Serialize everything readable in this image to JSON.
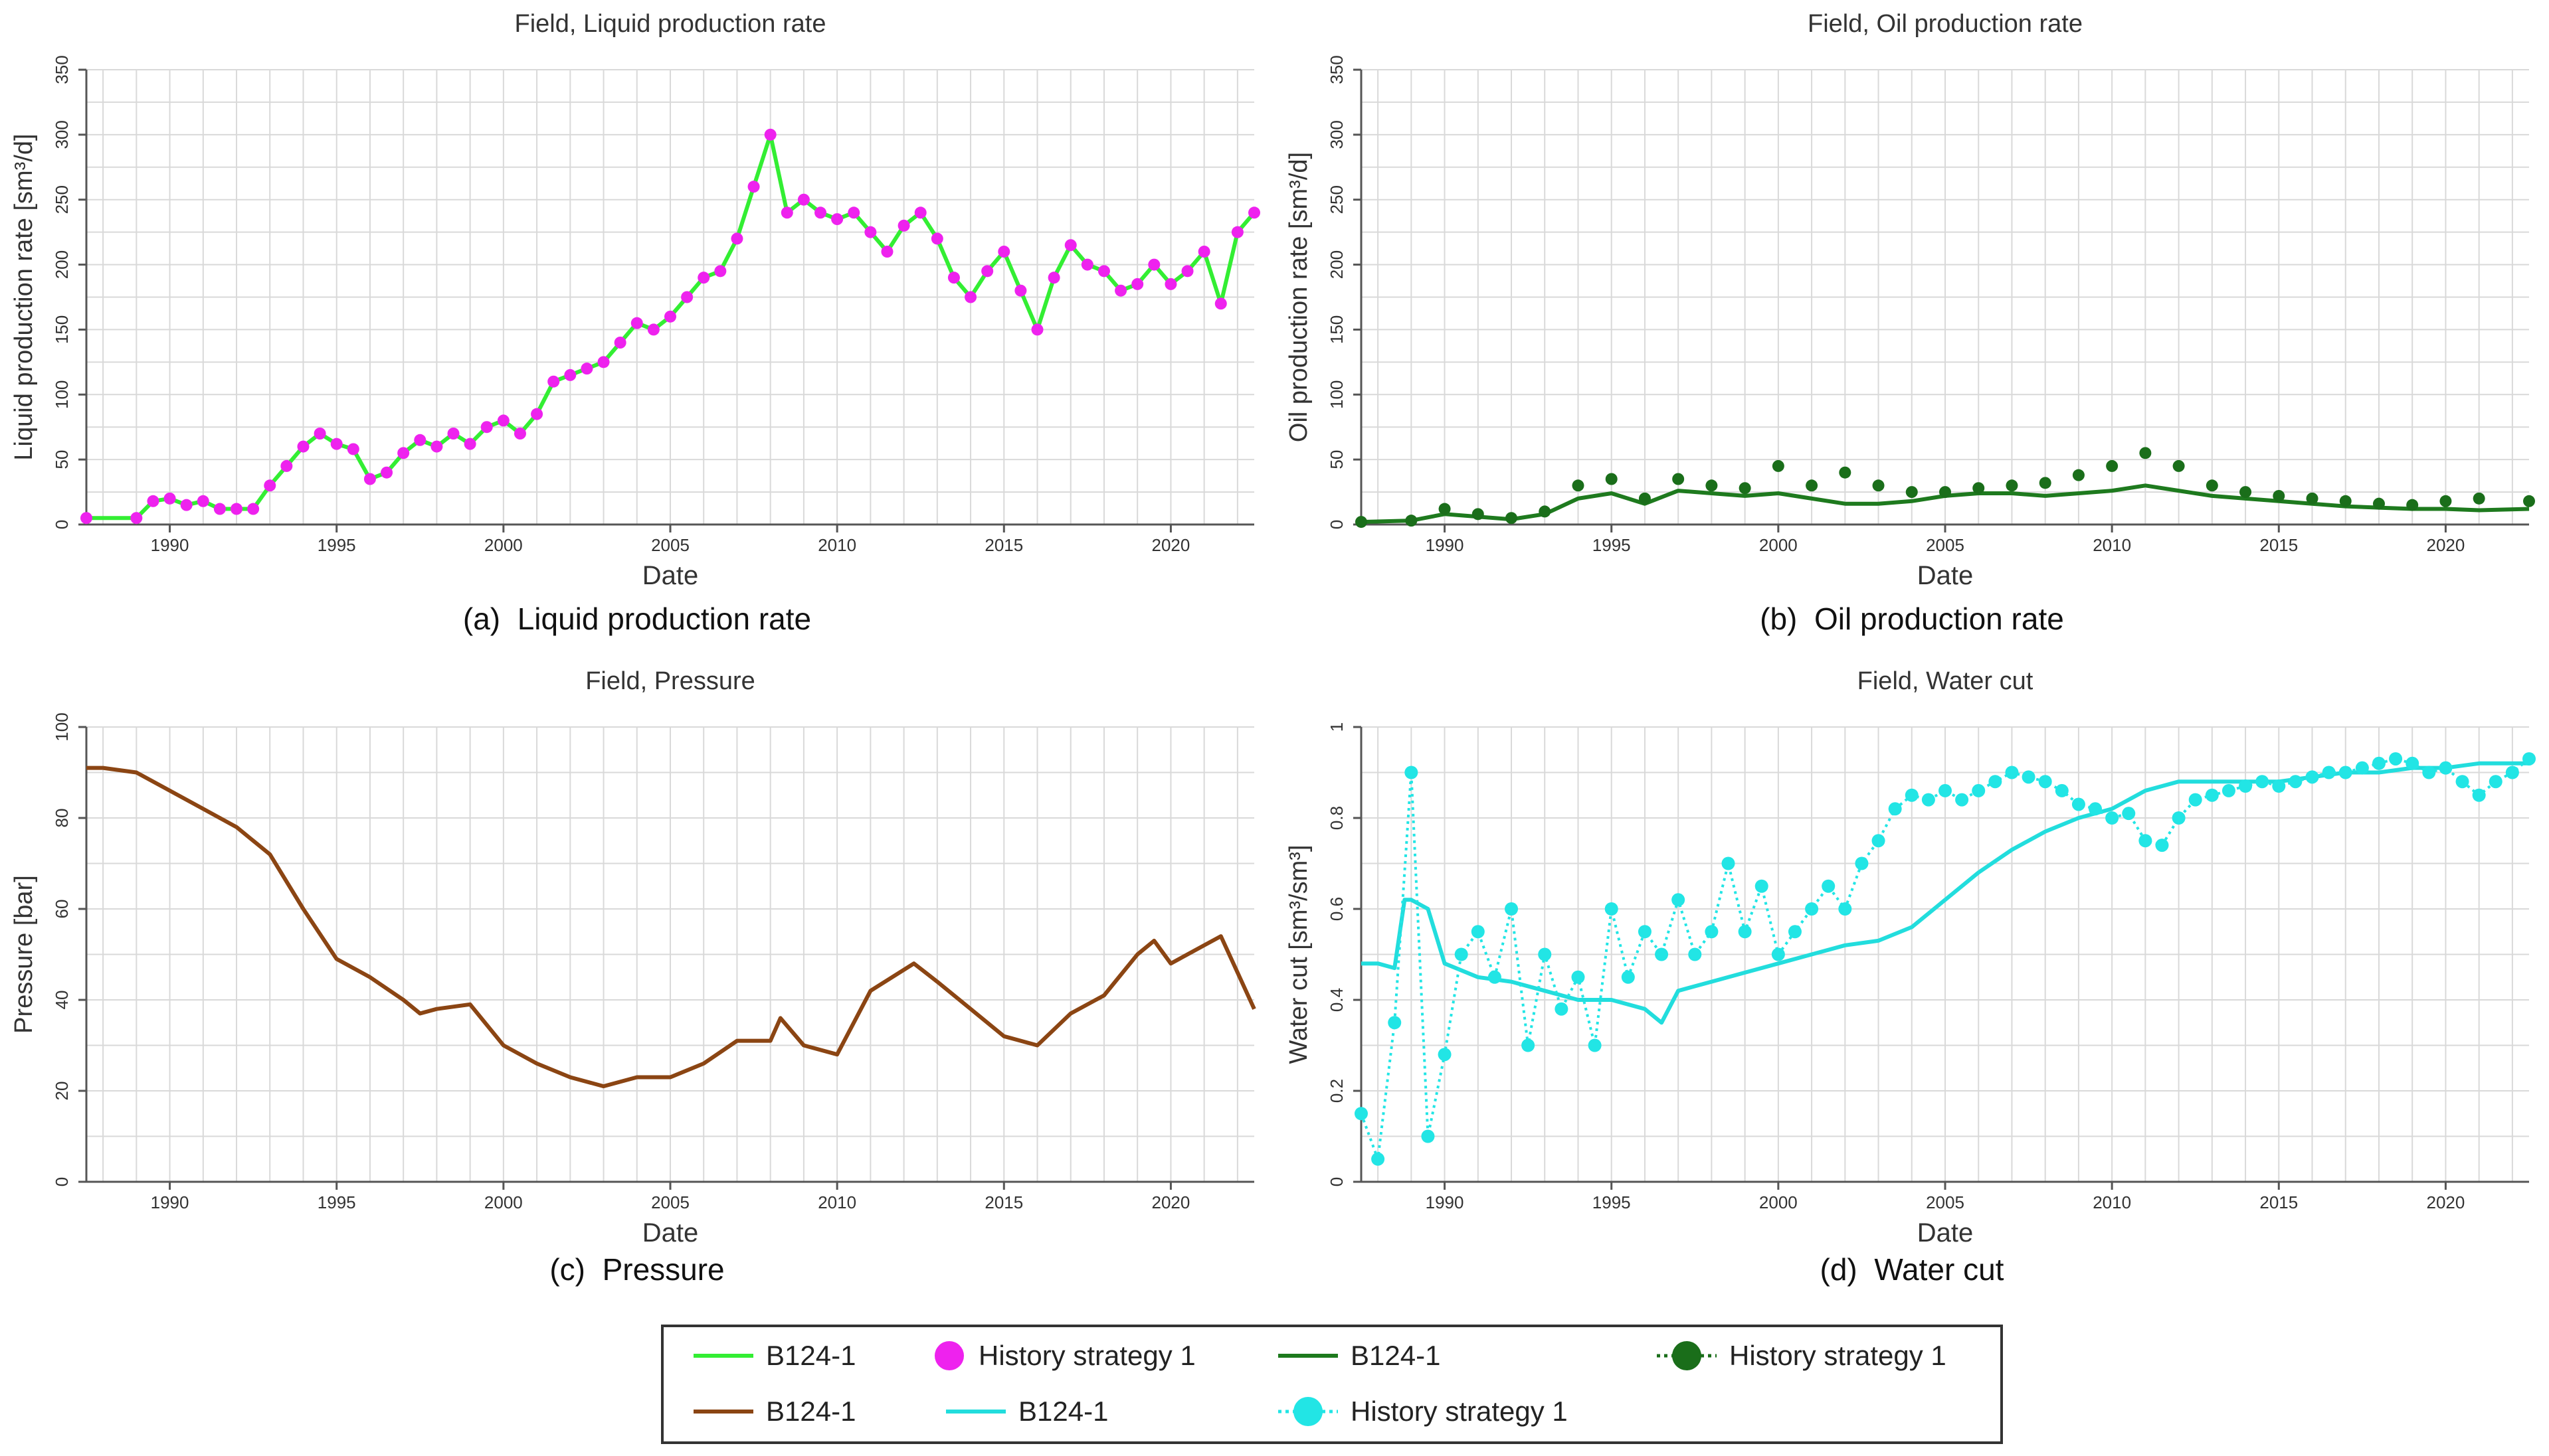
{
  "chart_data": [
    {
      "id": "liquid",
      "type": "line",
      "title": "Field, Liquid production rate",
      "xlabel": "Date",
      "ylabel": "Liquid production rate [sm³/d]",
      "caption_tag": "(a)",
      "caption": "Liquid production rate",
      "xlim": [
        1987.5,
        2022.5
      ],
      "ylim": [
        0,
        350
      ],
      "xticks": [
        1990,
        1995,
        2000,
        2005,
        2010,
        2015,
        2020
      ],
      "yticks": [
        0,
        50,
        100,
        150,
        200,
        250,
        300,
        350
      ],
      "series": [
        {
          "name": "B124-1",
          "style": "line",
          "color": "#33ee33",
          "x": [
            1987.5,
            1989,
            1989.5,
            1990,
            1990.5,
            1991,
            1991.5,
            1992,
            1992.5,
            1993,
            1993.5,
            1994,
            1994.5,
            1995,
            1995.5,
            1996,
            1996.5,
            1997,
            1997.5,
            1998,
            1998.5,
            1999,
            1999.5,
            2000,
            2000.5,
            2001,
            2001.5,
            2002,
            2002.5,
            2003,
            2003.5,
            2004,
            2004.5,
            2005,
            2005.5,
            2006,
            2006.5,
            2007,
            2007.5,
            2008,
            2008.5,
            2009,
            2009.5,
            2010,
            2010.5,
            2011,
            2011.5,
            2012,
            2012.5,
            2013,
            2013.5,
            2014,
            2014.5,
            2015,
            2015.5,
            2016,
            2016.5,
            2017,
            2017.5,
            2018,
            2018.5,
            2019,
            2019.5,
            2020,
            2020.5,
            2021,
            2021.5,
            2022,
            2022.5
          ],
          "y": [
            5,
            5,
            18,
            20,
            15,
            18,
            12,
            12,
            12,
            30,
            45,
            60,
            70,
            62,
            58,
            35,
            40,
            55,
            65,
            60,
            70,
            62,
            75,
            80,
            70,
            85,
            110,
            115,
            120,
            125,
            140,
            155,
            150,
            160,
            175,
            190,
            195,
            220,
            260,
            300,
            240,
            250,
            240,
            235,
            240,
            225,
            210,
            230,
            240,
            220,
            190,
            175,
            195,
            210,
            180,
            150,
            190,
            215,
            200,
            195,
            180,
            185,
            200,
            185,
            195,
            210,
            170,
            225,
            240
          ]
        },
        {
          "name": "History strategy 1",
          "style": "markers",
          "color": "#ee22ee",
          "x": [
            1987.5,
            1989,
            1989.5,
            1990,
            1990.5,
            1991,
            1991.5,
            1992,
            1992.5,
            1993,
            1993.5,
            1994,
            1994.5,
            1995,
            1995.5,
            1996,
            1996.5,
            1997,
            1997.5,
            1998,
            1998.5,
            1999,
            1999.5,
            2000,
            2000.5,
            2001,
            2001.5,
            2002,
            2002.5,
            2003,
            2003.5,
            2004,
            2004.5,
            2005,
            2005.5,
            2006,
            2006.5,
            2007,
            2007.5,
            2008,
            2008.5,
            2009,
            2009.5,
            2010,
            2010.5,
            2011,
            2011.5,
            2012,
            2012.5,
            2013,
            2013.5,
            2014,
            2014.5,
            2015,
            2015.5,
            2016,
            2016.5,
            2017,
            2017.5,
            2018,
            2018.5,
            2019,
            2019.5,
            2020,
            2020.5,
            2021,
            2021.5,
            2022,
            2022.5
          ],
          "y": [
            5,
            5,
            18,
            20,
            15,
            18,
            12,
            12,
            12,
            30,
            45,
            60,
            70,
            62,
            58,
            35,
            40,
            55,
            65,
            60,
            70,
            62,
            75,
            80,
            70,
            85,
            110,
            115,
            120,
            125,
            140,
            155,
            150,
            160,
            175,
            190,
            195,
            220,
            260,
            300,
            240,
            250,
            240,
            235,
            240,
            225,
            210,
            230,
            240,
            220,
            190,
            175,
            195,
            210,
            180,
            150,
            190,
            215,
            200,
            195,
            180,
            185,
            200,
            185,
            195,
            210,
            170,
            225,
            240
          ]
        }
      ]
    },
    {
      "id": "oil",
      "type": "line",
      "title": "Field, Oil production rate",
      "xlabel": "Date",
      "ylabel": "Oil production rate [sm³/d]",
      "caption_tag": "(b)",
      "caption": "Oil production rate",
      "xlim": [
        1987.5,
        2022.5
      ],
      "ylim": [
        0,
        350
      ],
      "xticks": [
        1990,
        1995,
        2000,
        2005,
        2010,
        2015,
        2020
      ],
      "yticks": [
        0,
        50,
        100,
        150,
        200,
        250,
        300,
        350
      ],
      "series": [
        {
          "name": "B124-1",
          "style": "line",
          "color": "#1e7a1e",
          "x": [
            1987.5,
            1989,
            1990,
            1991,
            1992,
            1993,
            1994,
            1995,
            1996,
            1997,
            1998,
            1999,
            2000,
            2001,
            2002,
            2003,
            2004,
            2005,
            2006,
            2007,
            2008,
            2009,
            2010,
            2011,
            2012,
            2013,
            2014,
            2015,
            2016,
            2017,
            2018,
            2019,
            2020,
            2021,
            2022.5
          ],
          "y": [
            2,
            3,
            8,
            6,
            4,
            8,
            20,
            24,
            16,
            26,
            24,
            22,
            24,
            20,
            16,
            16,
            18,
            22,
            24,
            24,
            22,
            24,
            26,
            30,
            26,
            22,
            20,
            18,
            16,
            14,
            13,
            12,
            12,
            11,
            12
          ]
        },
        {
          "name": "History strategy 1",
          "style": "markers",
          "color": "#1a6e1a",
          "x": [
            1987.5,
            1989,
            1990,
            1991,
            1992,
            1993,
            1994,
            1995,
            1996,
            1997,
            1998,
            1999,
            2000,
            2001,
            2002,
            2003,
            2004,
            2005,
            2006,
            2007,
            2008,
            2009,
            2010,
            2011,
            2012,
            2013,
            2014,
            2015,
            2016,
            2017,
            2018,
            2019,
            2020,
            2021,
            2022.5
          ],
          "y": [
            2,
            3,
            12,
            8,
            5,
            10,
            30,
            35,
            20,
            35,
            30,
            28,
            45,
            30,
            40,
            30,
            25,
            25,
            28,
            30,
            32,
            38,
            45,
            55,
            45,
            30,
            25,
            22,
            20,
            18,
            16,
            15,
            18,
            20,
            18
          ]
        }
      ]
    },
    {
      "id": "pressure",
      "type": "line",
      "title": "Field, Pressure",
      "xlabel": "Date",
      "ylabel": "Pressure [bar]",
      "caption_tag": "(c)",
      "caption": "Pressure",
      "xlim": [
        1987.5,
        2022.5
      ],
      "ylim": [
        0,
        100
      ],
      "xticks": [
        1990,
        1995,
        2000,
        2005,
        2010,
        2015,
        2020
      ],
      "yticks": [
        0,
        20,
        40,
        60,
        80,
        100
      ],
      "series": [
        {
          "name": "B124-1",
          "style": "line",
          "color": "#8b4513",
          "x": [
            1987.5,
            1988,
            1989,
            1990,
            1991,
            1992,
            1993,
            1994,
            1995,
            1996,
            1997,
            1997.5,
            1998,
            1999,
            2000,
            2001,
            2002,
            2003,
            2004,
            2005,
            2006,
            2007,
            2008,
            2008.3,
            2009,
            2010,
            2011,
            2012.3,
            2013,
            2014,
            2015,
            2016,
            2017,
            2018,
            2019,
            2019.5,
            2020,
            2021,
            2021.5,
            2022,
            2022.5
          ],
          "y": [
            91,
            91,
            90,
            86,
            82,
            78,
            72,
            60,
            49,
            45,
            40,
            37,
            38,
            39,
            30,
            26,
            23,
            21,
            23,
            23,
            26,
            31,
            31,
            36,
            30,
            28,
            42,
            48,
            44,
            38,
            32,
            30,
            37,
            41,
            50,
            53,
            48,
            52,
            54,
            46,
            38
          ]
        }
      ]
    },
    {
      "id": "watercut",
      "type": "line",
      "title": "Field, Water cut",
      "xlabel": "Date",
      "ylabel": "Water cut [sm³/sm³]",
      "caption_tag": "(d)",
      "caption": "Water cut",
      "xlim": [
        1987.5,
        2022.5
      ],
      "ylim": [
        0,
        1
      ],
      "xticks": [
        1990,
        1995,
        2000,
        2005,
        2010,
        2015,
        2020
      ],
      "yticks": [
        0,
        0.2,
        0.4,
        0.6,
        0.8,
        1
      ],
      "series": [
        {
          "name": "B124-1",
          "style": "line",
          "color": "#22dddd",
          "x": [
            1987.5,
            1988,
            1988.5,
            1988.8,
            1989,
            1989.5,
            1990,
            1991,
            1992,
            1993,
            1994,
            1995,
            1996,
            1996.5,
            1997,
            1998,
            1999,
            2000,
            2001,
            2002,
            2003,
            2004,
            2005,
            2006,
            2007,
            2008,
            2009,
            2010,
            2011,
            2012,
            2013,
            2014,
            2015,
            2016,
            2017,
            2018,
            2019,
            2020,
            2021,
            2022.5
          ],
          "y": [
            0.48,
            0.48,
            0.47,
            0.62,
            0.62,
            0.6,
            0.48,
            0.45,
            0.44,
            0.42,
            0.4,
            0.4,
            0.38,
            0.35,
            0.42,
            0.44,
            0.46,
            0.48,
            0.5,
            0.52,
            0.53,
            0.56,
            0.62,
            0.68,
            0.73,
            0.77,
            0.8,
            0.82,
            0.86,
            0.88,
            0.88,
            0.88,
            0.88,
            0.89,
            0.9,
            0.9,
            0.91,
            0.91,
            0.92,
            0.92
          ]
        },
        {
          "name": "History strategy 1",
          "style": "markers-dotted",
          "color": "#22e5e5",
          "x": [
            1987.5,
            1988,
            1988.5,
            1989,
            1989.5,
            1990,
            1990.5,
            1991,
            1991.5,
            1992,
            1992.5,
            1993,
            1993.5,
            1994,
            1994.5,
            1995,
            1995.5,
            1996,
            1996.5,
            1997,
            1997.5,
            1998,
            1998.5,
            1999,
            1999.5,
            2000,
            2000.5,
            2001,
            2001.5,
            2002,
            2002.5,
            2003,
            2003.5,
            2004,
            2004.5,
            2005,
            2005.5,
            2006,
            2006.5,
            2007,
            2007.5,
            2008,
            2008.5,
            2009,
            2009.5,
            2010,
            2010.5,
            2011,
            2011.5,
            2012,
            2012.5,
            2013,
            2013.5,
            2014,
            2014.5,
            2015,
            2015.5,
            2016,
            2016.5,
            2017,
            2017.5,
            2018,
            2018.5,
            2019,
            2019.5,
            2020,
            2020.5,
            2021,
            2021.5,
            2022,
            2022.5
          ],
          "y": [
            0.15,
            0.05,
            0.35,
            0.9,
            0.1,
            0.28,
            0.5,
            0.55,
            0.45,
            0.6,
            0.3,
            0.5,
            0.38,
            0.45,
            0.3,
            0.6,
            0.45,
            0.55,
            0.5,
            0.62,
            0.5,
            0.55,
            0.7,
            0.55,
            0.65,
            0.5,
            0.55,
            0.6,
            0.65,
            0.6,
            0.7,
            0.75,
            0.82,
            0.85,
            0.84,
            0.86,
            0.84,
            0.86,
            0.88,
            0.9,
            0.89,
            0.88,
            0.86,
            0.83,
            0.82,
            0.8,
            0.81,
            0.75,
            0.74,
            0.8,
            0.84,
            0.85,
            0.86,
            0.87,
            0.88,
            0.87,
            0.88,
            0.89,
            0.9,
            0.9,
            0.91,
            0.92,
            0.93,
            0.92,
            0.9,
            0.91,
            0.88,
            0.85,
            0.88,
            0.9,
            0.93
          ]
        }
      ]
    }
  ],
  "legend": {
    "items": [
      {
        "label": "B124-1",
        "kind": "line",
        "color": "#33ee33"
      },
      {
        "label": "History strategy 1",
        "kind": "marker",
        "color": "#ee22ee"
      },
      {
        "label": "B124-1",
        "kind": "line",
        "color": "#1e7a1e"
      },
      {
        "label": "History strategy 1",
        "kind": "marker-dotted",
        "color": "#1a6e1a"
      },
      {
        "label": "B124-1",
        "kind": "line",
        "color": "#8b4513"
      },
      {
        "label": "B124-1",
        "kind": "line",
        "color": "#22dddd"
      },
      {
        "label": "History strategy 1",
        "kind": "marker-dotted",
        "color": "#22e5e5"
      }
    ]
  }
}
